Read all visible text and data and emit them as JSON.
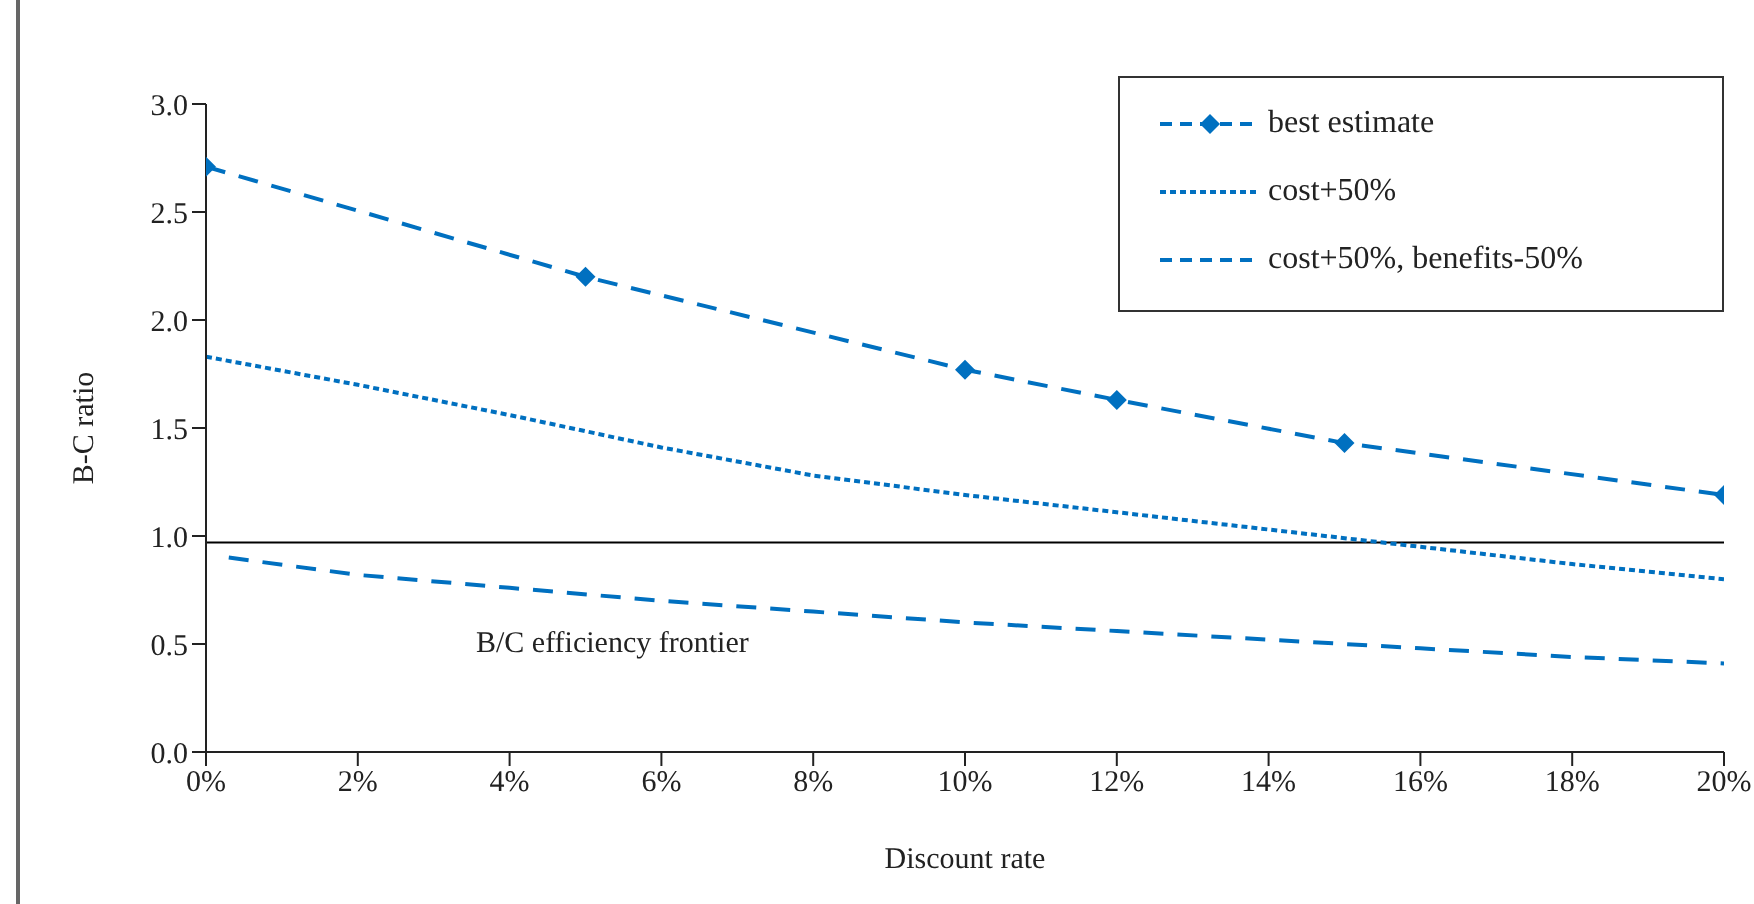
{
  "chart_data": {
    "type": "line",
    "xlabel": "Discount rate",
    "ylabel": "B-C ratio",
    "xlim": [
      0,
      20
    ],
    "xticks": [
      {
        "value": 0,
        "label": "0%"
      },
      {
        "value": 2,
        "label": "2%"
      },
      {
        "value": 4,
        "label": "4%"
      },
      {
        "value": 6,
        "label": "6%"
      },
      {
        "value": 8,
        "label": "8%"
      },
      {
        "value": 10,
        "label": "10%"
      },
      {
        "value": 12,
        "label": "12%"
      },
      {
        "value": 14,
        "label": "14%"
      },
      {
        "value": 16,
        "label": "16%"
      },
      {
        "value": 18,
        "label": "18%"
      },
      {
        "value": 20,
        "label": "20%"
      }
    ],
    "ylim": [
      0,
      3
    ],
    "yticks": [
      {
        "value": 0,
        "label": "0.0"
      },
      {
        "value": 0.5,
        "label": "0.5"
      },
      {
        "value": 1,
        "label": "1.0"
      },
      {
        "value": 1.5,
        "label": "1.5"
      },
      {
        "value": 2,
        "label": "2.0"
      },
      {
        "value": 2.5,
        "label": "2.5"
      },
      {
        "value": 3,
        "label": "3.0"
      }
    ],
    "grid": false,
    "legend": "top right",
    "series": [
      {
        "name": "best estimate",
        "color": "#0070c0",
        "marker": "diamond",
        "line_style": "dashed",
        "x": [
          0,
          5,
          10,
          12,
          15,
          20
        ],
        "values": [
          2.71,
          2.2,
          1.77,
          1.63,
          1.43,
          1.19
        ]
      },
      {
        "name": "cost+50%",
        "color": "#0070c0",
        "marker": "none",
        "line_style": "dotted",
        "x": [
          0,
          2,
          4,
          6,
          8,
          10,
          12,
          14,
          16,
          18,
          20
        ],
        "values": [
          1.83,
          1.7,
          1.56,
          1.41,
          1.28,
          1.19,
          1.11,
          1.03,
          0.95,
          0.87,
          0.8
        ]
      },
      {
        "name": "cost+50%, benefits-50%",
        "color": "#0070c0",
        "marker": "none",
        "line_style": "dashed",
        "x": [
          0.3,
          2,
          4,
          6,
          8,
          10,
          12,
          14,
          16,
          18,
          20
        ],
        "values": [
          0.9,
          0.82,
          0.76,
          0.7,
          0.65,
          0.6,
          0.56,
          0.52,
          0.48,
          0.44,
          0.41
        ]
      }
    ],
    "ref_lines": [
      {
        "axis": "y",
        "value": 0.97,
        "label": "B/C efficiency frontier",
        "color": "#000000",
        "line_style": "solid"
      }
    ]
  }
}
